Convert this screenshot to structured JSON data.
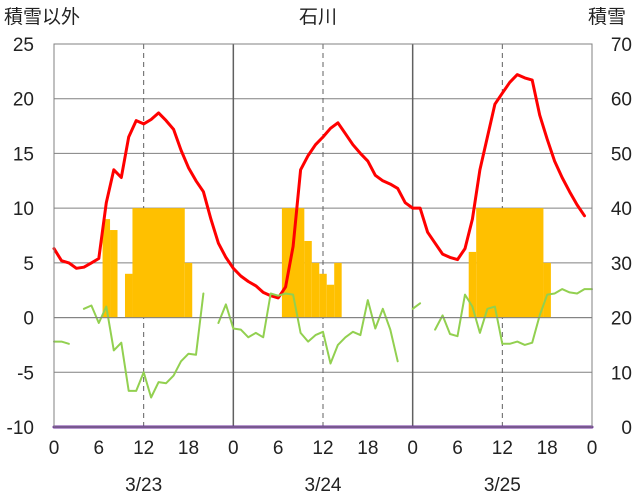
{
  "chart_data": {
    "type": "line",
    "title": "石川",
    "left_axis_label": "積雪以外",
    "right_axis_label": "積雪",
    "ylim_left": [
      -10,
      25
    ],
    "ylim_right": [
      0,
      70
    ],
    "left_ticks": [
      25,
      20,
      15,
      10,
      5,
      0,
      -5,
      -10
    ],
    "right_ticks": [
      70,
      60,
      50,
      40,
      30,
      20,
      10,
      0
    ],
    "xlim": [
      0,
      72
    ],
    "x_tick_values": [
      0,
      6,
      12,
      18,
      24,
      30,
      36,
      42,
      48,
      54,
      60,
      66,
      72
    ],
    "x_tick_labels": [
      "0",
      "6",
      "12",
      "18",
      "0",
      "6",
      "12",
      "18",
      "0",
      "6",
      "12",
      "18",
      "0"
    ],
    "dates": [
      {
        "x": 12,
        "label": "3/23"
      },
      {
        "x": 36,
        "label": "3/24"
      },
      {
        "x": 60,
        "label": "3/25"
      }
    ],
    "grid": true,
    "colors": {
      "red": "#ff0000",
      "green": "#92d050",
      "bars": "#ffc000",
      "baseline": "#7030a0",
      "grid": "#808080",
      "day_divider": "#606060"
    },
    "series": [
      {
        "color": "red",
        "axis": "left",
        "x": [
          0,
          1,
          2,
          3,
          4,
          5,
          6,
          7,
          8,
          9,
          10,
          11,
          12,
          13,
          14,
          15,
          16,
          17,
          18,
          19,
          20,
          21,
          22,
          23,
          24,
          25,
          26,
          27,
          28,
          29,
          30,
          31,
          32,
          33,
          34,
          35,
          36,
          37,
          38,
          39,
          40,
          41,
          42,
          43,
          44,
          45,
          46,
          47,
          48,
          49,
          50,
          51,
          52,
          53,
          54,
          55,
          56,
          57,
          58,
          59,
          60,
          61,
          62,
          63,
          64,
          65,
          66,
          67,
          68,
          69,
          70,
          71
        ],
        "y": [
          6.3,
          5.2,
          5.0,
          4.5,
          4.6,
          5.0,
          5.4,
          10.5,
          13.5,
          12.8,
          16.5,
          18.0,
          17.7,
          18.1,
          18.7,
          18.0,
          17.2,
          15.3,
          13.7,
          12.5,
          11.5,
          9.0,
          6.8,
          5.5,
          4.5,
          3.8,
          3.3,
          2.9,
          2.3,
          2.0,
          1.8,
          2.8,
          6.5,
          13.5,
          14.8,
          15.8,
          16.5,
          17.3,
          17.8,
          16.8,
          15.8,
          15.0,
          14.3,
          13.0,
          12.5,
          12.2,
          11.8,
          10.5,
          10.0,
          10.0,
          7.8,
          6.8,
          5.8,
          5.5,
          5.3,
          6.3,
          9.0,
          13.5,
          16.5,
          19.5,
          20.5,
          21.5,
          22.2,
          21.9,
          21.7,
          18.5,
          16.3,
          14.3,
          12.8,
          11.5,
          10.3,
          9.3
        ]
      },
      {
        "color": "green",
        "axis": "left",
        "segments": [
          {
            "x": [
              0,
              1,
              2
            ],
            "y": [
              -2.2,
              -2.2,
              -2.4
            ]
          },
          {
            "x": [
              4,
              5,
              6,
              7,
              8,
              9,
              10,
              11,
              12,
              13,
              14,
              15,
              16,
              17,
              18,
              19,
              20
            ],
            "y": [
              0.8,
              1.1,
              -0.5,
              1.0,
              -3.0,
              -2.3,
              -6.7,
              -6.7,
              -5.0,
              -7.3,
              -5.9,
              -6.0,
              -5.3,
              -4.0,
              -3.3,
              -3.4,
              2.2
            ]
          },
          {
            "x": [
              22,
              23,
              24,
              25,
              26,
              27,
              28,
              29,
              30,
              31,
              32,
              33,
              34,
              35,
              36,
              37,
              38,
              39,
              40,
              41,
              42,
              43,
              44,
              45,
              46
            ],
            "y": [
              -0.5,
              1.2,
              -1.0,
              -1.1,
              -1.8,
              -1.4,
              -1.8,
              2.2,
              2.0,
              2.2,
              2.1,
              -1.4,
              -2.2,
              -1.6,
              -1.3,
              -4.2,
              -2.5,
              -1.8,
              -1.3,
              -1.6,
              1.6,
              -1.0,
              0.8,
              -1.1,
              -4.0
            ]
          },
          {
            "x": [
              48,
              49
            ],
            "y": [
              0.8,
              1.3
            ]
          },
          {
            "x": [
              51,
              52,
              53,
              54,
              55,
              56,
              57,
              58,
              59,
              60,
              61,
              62,
              63,
              64,
              65,
              66,
              67,
              68,
              69,
              70,
              71,
              72
            ],
            "y": [
              -1.1,
              0.2,
              -1.5,
              -1.7,
              2.1,
              1.0,
              -1.4,
              0.8,
              1.0,
              -2.4,
              -2.4,
              -2.2,
              -2.5,
              -2.3,
              0.2,
              2.1,
              2.2,
              2.6,
              2.3,
              2.2,
              2.6,
              2.6
            ]
          }
        ]
      },
      {
        "color": "bars",
        "type": "bar",
        "axis": "right",
        "bars": [
          {
            "x0": 6.5,
            "x1": 7.5,
            "value": 38
          },
          {
            "x0": 7.5,
            "x1": 8.5,
            "value": 36
          },
          {
            "x0": 9.5,
            "x1": 10.5,
            "value": 28
          },
          {
            "x0": 10.5,
            "x1": 17.5,
            "value": 40
          },
          {
            "x0": 17.5,
            "x1": 18.5,
            "value": 30
          },
          {
            "x0": 30.5,
            "x1": 33.5,
            "value": 40
          },
          {
            "x0": 33.5,
            "x1": 34.5,
            "value": 34
          },
          {
            "x0": 34.5,
            "x1": 35.5,
            "value": 30
          },
          {
            "x0": 35.5,
            "x1": 36.5,
            "value": 28
          },
          {
            "x0": 36.5,
            "x1": 37.5,
            "value": 26
          },
          {
            "x0": 37.5,
            "x1": 38.5,
            "value": 30
          },
          {
            "x0": 55.5,
            "x1": 56.5,
            "value": 32
          },
          {
            "x0": 56.5,
            "x1": 65.5,
            "value": 40
          },
          {
            "x0": 65.5,
            "x1": 66.5,
            "value": 30
          }
        ]
      },
      {
        "color": "baseline",
        "axis": "left",
        "x": [
          0,
          72
        ],
        "y": [
          -10,
          -10
        ]
      }
    ]
  }
}
